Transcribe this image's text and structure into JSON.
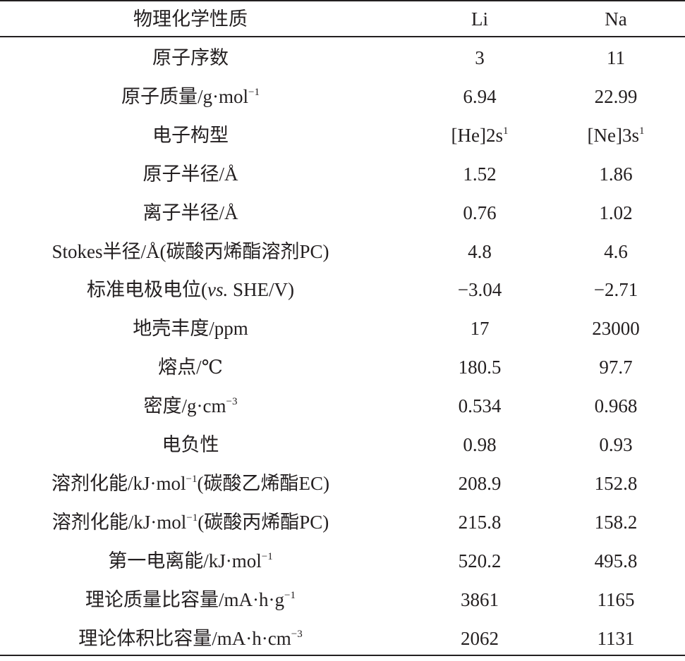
{
  "table": {
    "header": [
      "物理化学性质",
      "Li",
      "Na"
    ],
    "rows": [
      {
        "property": [
          {
            "t": "原子序数"
          }
        ],
        "li": [
          {
            "t": "3"
          }
        ],
        "na": [
          {
            "t": "11"
          }
        ]
      },
      {
        "property": [
          {
            "t": "原子质量/g·mol"
          },
          {
            "t": "−1",
            "sup": true
          }
        ],
        "li": [
          {
            "t": "6.94"
          }
        ],
        "na": [
          {
            "t": "22.99"
          }
        ]
      },
      {
        "property": [
          {
            "t": "电子构型"
          }
        ],
        "li": [
          {
            "t": "[He]2s"
          },
          {
            "t": "1",
            "sup": true
          }
        ],
        "na": [
          {
            "t": "[Ne]3s"
          },
          {
            "t": "1",
            "sup": true
          }
        ]
      },
      {
        "property": [
          {
            "t": "原子半径/Å"
          }
        ],
        "li": [
          {
            "t": "1.52"
          }
        ],
        "na": [
          {
            "t": "1.86"
          }
        ]
      },
      {
        "property": [
          {
            "t": "离子半径/Å"
          }
        ],
        "li": [
          {
            "t": "0.76"
          }
        ],
        "na": [
          {
            "t": "1.02"
          }
        ]
      },
      {
        "property": [
          {
            "t": "Stokes半径/Å(碳酸丙烯酯溶剂PC)"
          }
        ],
        "li": [
          {
            "t": "4.8"
          }
        ],
        "na": [
          {
            "t": "4.6"
          }
        ]
      },
      {
        "property": [
          {
            "t": "标准电极电位("
          },
          {
            "t": "vs.",
            "i": true
          },
          {
            "t": " SHE/V)"
          }
        ],
        "li": [
          {
            "t": "−3.04"
          }
        ],
        "na": [
          {
            "t": "−2.71"
          }
        ]
      },
      {
        "property": [
          {
            "t": "地壳丰度/ppm"
          }
        ],
        "li": [
          {
            "t": "17"
          }
        ],
        "na": [
          {
            "t": "23000"
          }
        ]
      },
      {
        "property": [
          {
            "t": "熔点/℃"
          }
        ],
        "li": [
          {
            "t": "180.5"
          }
        ],
        "na": [
          {
            "t": "97.7"
          }
        ]
      },
      {
        "property": [
          {
            "t": "密度/g·cm"
          },
          {
            "t": "−3",
            "sup": true
          }
        ],
        "li": [
          {
            "t": "0.534"
          }
        ],
        "na": [
          {
            "t": "0.968"
          }
        ]
      },
      {
        "property": [
          {
            "t": "电负性"
          }
        ],
        "li": [
          {
            "t": "0.98"
          }
        ],
        "na": [
          {
            "t": "0.93"
          }
        ]
      },
      {
        "property": [
          {
            "t": "溶剂化能/kJ·mol"
          },
          {
            "t": "−1",
            "sup": true
          },
          {
            "t": "(碳酸乙烯酯EC)"
          }
        ],
        "li": [
          {
            "t": "208.9"
          }
        ],
        "na": [
          {
            "t": "152.8"
          }
        ]
      },
      {
        "property": [
          {
            "t": "溶剂化能/kJ·mol"
          },
          {
            "t": "−1",
            "sup": true
          },
          {
            "t": "(碳酸丙烯酯PC)"
          }
        ],
        "li": [
          {
            "t": "215.8"
          }
        ],
        "na": [
          {
            "t": "158.2"
          }
        ]
      },
      {
        "property": [
          {
            "t": "第一电离能/kJ·mol"
          },
          {
            "t": "−1",
            "sup": true
          }
        ],
        "li": [
          {
            "t": "520.2"
          }
        ],
        "na": [
          {
            "t": "495.8"
          }
        ]
      },
      {
        "property": [
          {
            "t": "理论质量比容量/mA·h·g"
          },
          {
            "t": "−1",
            "sup": true
          }
        ],
        "li": [
          {
            "t": "3861"
          }
        ],
        "na": [
          {
            "t": "1165"
          }
        ]
      },
      {
        "property": [
          {
            "t": "理论体积比容量/mA·h·cm"
          },
          {
            "t": "−3",
            "sup": true
          }
        ],
        "li": [
          {
            "t": "2062"
          }
        ],
        "na": [
          {
            "t": "1131"
          }
        ]
      }
    ]
  }
}
